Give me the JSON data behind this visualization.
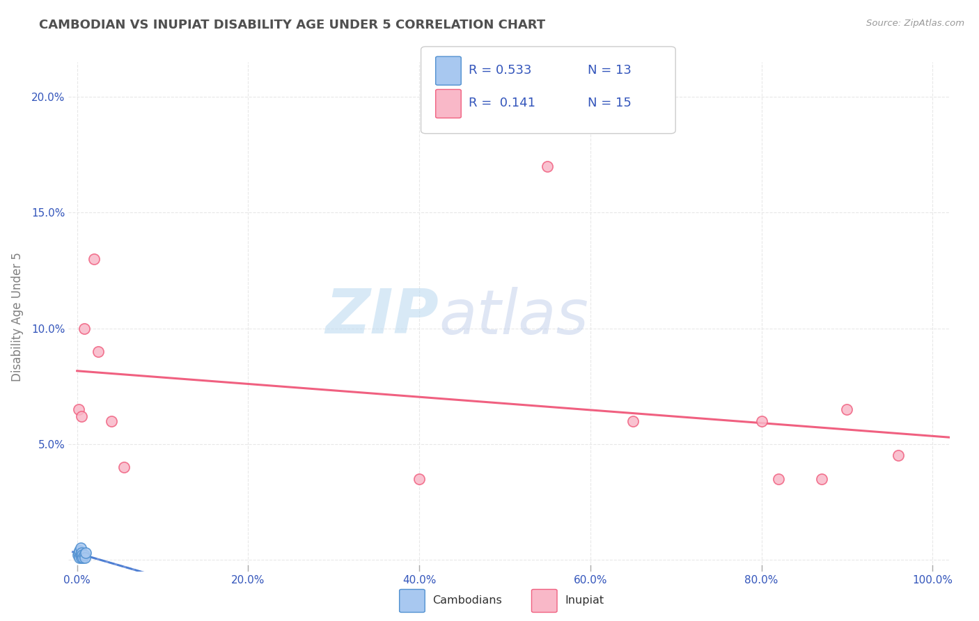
{
  "title": "CAMBODIAN VS INUPIAT DISABILITY AGE UNDER 5 CORRELATION CHART",
  "source": "Source: ZipAtlas.com",
  "ylabel": "Disability Age Under 5",
  "xlim": [
    -0.01,
    1.02
  ],
  "ylim": [
    -0.005,
    0.215
  ],
  "xticks": [
    0.0,
    0.2,
    0.4,
    0.6,
    0.8,
    1.0
  ],
  "xticklabels": [
    "0.0%",
    "20.0%",
    "40.0%",
    "60.0%",
    "80.0%",
    "100.0%"
  ],
  "yticks": [
    0.0,
    0.05,
    0.1,
    0.15,
    0.2
  ],
  "yticklabels": [
    "",
    "5.0%",
    "10.0%",
    "15.0%",
    "20.0%"
  ],
  "cambodian_x": [
    0.001,
    0.002,
    0.003,
    0.003,
    0.004,
    0.004,
    0.005,
    0.005,
    0.006,
    0.007,
    0.008,
    0.009,
    0.01
  ],
  "cambodian_y": [
    0.002,
    0.003,
    0.001,
    0.004,
    0.002,
    0.005,
    0.001,
    0.003,
    0.002,
    0.001,
    0.002,
    0.001,
    0.003
  ],
  "inupiat_x": [
    0.002,
    0.005,
    0.008,
    0.02,
    0.025,
    0.04,
    0.055,
    0.4,
    0.55,
    0.65,
    0.8,
    0.82,
    0.87,
    0.9,
    0.96
  ],
  "inupiat_y": [
    0.065,
    0.062,
    0.1,
    0.13,
    0.09,
    0.06,
    0.04,
    0.035,
    0.17,
    0.06,
    0.06,
    0.035,
    0.035,
    0.065,
    0.045
  ],
  "cambodian_color": "#a8c8f0",
  "inupiat_color": "#f9b8c8",
  "cambodian_edge_color": "#5090d0",
  "inupiat_edge_color": "#f06080",
  "cambodian_trend_color": "#7ab0e0",
  "inupiat_trend_color": "#f06080",
  "cambodian_R": 0.533,
  "cambodian_N": 13,
  "inupiat_R": 0.141,
  "inupiat_N": 15,
  "watermark_zip": "ZIP",
  "watermark_atlas": "atlas",
  "background_color": "#ffffff",
  "grid_color": "#e8e8e8",
  "title_color": "#505050",
  "axis_label_color": "#808080",
  "tick_color": "#3355bb",
  "legend_r_color": "#3355bb",
  "legend_label_color": "#303030"
}
